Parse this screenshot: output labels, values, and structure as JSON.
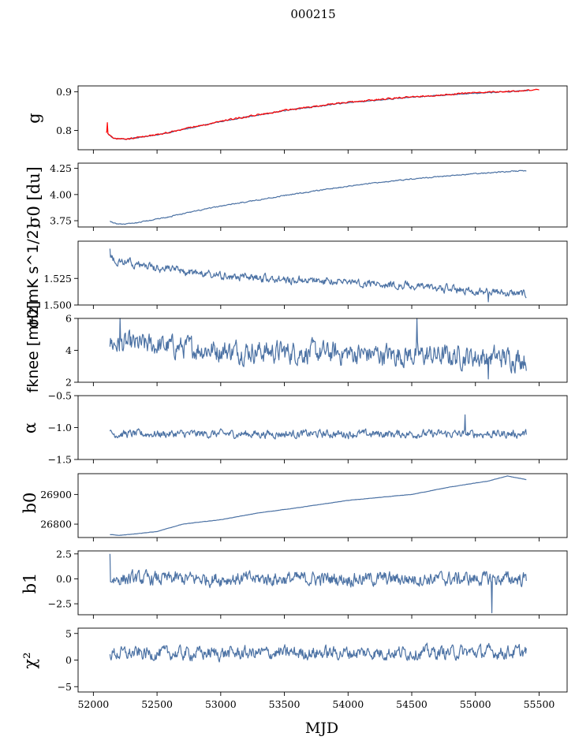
{
  "figure_title": "000215",
  "xlabel": "MJD",
  "chart_data": [
    {
      "type": "line",
      "ylabel": "g",
      "xlim": [
        51880,
        55720
      ],
      "ylim": [
        0.75,
        0.915
      ],
      "yticks": [
        0.8,
        0.9
      ],
      "ytick_labels": [
        "0.8",
        "0.9"
      ],
      "series": [
        {
          "color": "#4c72a4",
          "trend": [
            [
              52110,
              0.793
            ],
            [
              52150,
              0.78
            ],
            [
              52250,
              0.777
            ],
            [
              52500,
              0.788
            ],
            [
              53000,
              0.823
            ],
            [
              53500,
              0.851
            ],
            [
              54000,
              0.872
            ],
            [
              54500,
              0.886
            ],
            [
              55000,
              0.896
            ],
            [
              55420,
              0.903
            ]
          ],
          "noise": 0.001
        },
        {
          "color": "#ff0000",
          "trend": [
            [
              52100,
              0.796
            ],
            [
              52160,
              0.78
            ],
            [
              52250,
              0.777
            ],
            [
              52500,
              0.789
            ],
            [
              53000,
              0.824
            ],
            [
              53500,
              0.852
            ],
            [
              54000,
              0.873
            ],
            [
              54500,
              0.887
            ],
            [
              55000,
              0.897
            ],
            [
              55500,
              0.905
            ]
          ],
          "noise": 0.0015,
          "spikes": [
            [
              52110,
              0.82
            ]
          ]
        }
      ]
    },
    {
      "type": "line",
      "ylabel": "σ0 [du]",
      "xlim": [
        51880,
        55720
      ],
      "ylim": [
        3.69,
        4.3
      ],
      "yticks": [
        3.75,
        4.0,
        4.25
      ],
      "ytick_labels": [
        "3.75",
        "4.00",
        "4.25"
      ],
      "series": [
        {
          "color": "#4c72a4",
          "trend": [
            [
              52130,
              3.745
            ],
            [
              52180,
              3.72
            ],
            [
              52300,
              3.72
            ],
            [
              52600,
              3.79
            ],
            [
              53000,
              3.89
            ],
            [
              53500,
              3.99
            ],
            [
              54000,
              4.08
            ],
            [
              54500,
              4.15
            ],
            [
              55000,
              4.2
            ],
            [
              55400,
              4.23
            ]
          ],
          "noise": 0.004
        }
      ]
    },
    {
      "type": "line",
      "ylabel": "σ0[mK s^1/2]",
      "xlim": [
        51880,
        55720
      ],
      "ylim": [
        1.5,
        1.56
      ],
      "yticks": [
        1.5,
        1.525
      ],
      "ytick_labels": [
        "1.500",
        "1.525"
      ],
      "series": [
        {
          "color": "#4c72a4",
          "trend": [
            [
              52130,
              1.543
            ],
            [
              52500,
              1.535
            ],
            [
              53000,
              1.527
            ],
            [
              53500,
              1.524
            ],
            [
              54000,
              1.522
            ],
            [
              54500,
              1.518
            ],
            [
              55000,
              1.513
            ],
            [
              55400,
              1.51
            ]
          ],
          "noise": 0.003,
          "spikes": [
            [
              52130,
              1.553
            ],
            [
              55100,
              1.503
            ]
          ]
        }
      ]
    },
    {
      "type": "line",
      "ylabel": "fknee [mHz]",
      "xlim": [
        51880,
        55720
      ],
      "ylim": [
        2,
        6
      ],
      "yticks": [
        2,
        4,
        6
      ],
      "ytick_labels": [
        "2",
        "4",
        "6"
      ],
      "series": [
        {
          "color": "#4c72a4",
          "trend": [
            [
              52130,
              4.4
            ],
            [
              52500,
              4.3
            ],
            [
              53000,
              4.0
            ],
            [
              53500,
              3.9
            ],
            [
              54000,
              3.8
            ],
            [
              54500,
              3.7
            ],
            [
              55000,
              3.6
            ],
            [
              55400,
              3.5
            ]
          ],
          "noise": 0.55,
          "spikes": [
            [
              52210,
              6.0
            ],
            [
              54540,
              6.0
            ],
            [
              55100,
              2.2
            ]
          ]
        }
      ]
    },
    {
      "type": "line",
      "ylabel": "α",
      "xlim": [
        51880,
        55720
      ],
      "ylim": [
        -1.5,
        -0.5
      ],
      "yticks": [
        -1.5,
        -1.0,
        -0.5
      ],
      "ytick_labels": [
        "−1.5",
        "−1.0",
        "−0.5"
      ],
      "series": [
        {
          "color": "#4c72a4",
          "trend": [
            [
              52130,
              -1.1
            ],
            [
              55400,
              -1.1
            ]
          ],
          "noise": 0.05,
          "spikes": [
            [
              54920,
              -0.8
            ]
          ]
        }
      ]
    },
    {
      "type": "line",
      "ylabel": "b0",
      "xlim": [
        51880,
        55720
      ],
      "ylim": [
        26755,
        26970
      ],
      "yticks": [
        26800,
        26900
      ],
      "ytick_labels": [
        "26800",
        "26900"
      ],
      "series": [
        {
          "color": "#4c72a4",
          "trend": [
            [
              52130,
              26765
            ],
            [
              52200,
              26762
            ],
            [
              52500,
              26775
            ],
            [
              52700,
              26800
            ],
            [
              53000,
              26815
            ],
            [
              53300,
              26838
            ],
            [
              53600,
              26855
            ],
            [
              54000,
              26880
            ],
            [
              54500,
              26900
            ],
            [
              54800,
              26925
            ],
            [
              55100,
              26945
            ],
            [
              55250,
              26962
            ],
            [
              55400,
              26950
            ]
          ],
          "noise": 0.4
        }
      ]
    },
    {
      "type": "line",
      "ylabel": "b1",
      "xlim": [
        51880,
        55720
      ],
      "ylim": [
        -3.6,
        2.8
      ],
      "yticks": [
        -2.5,
        0.0,
        2.5
      ],
      "ytick_labels": [
        "−2.5",
        "0.0",
        "2.5"
      ],
      "series": [
        {
          "color": "#4c72a4",
          "trend": [
            [
              52130,
              0.0
            ],
            [
              55400,
              0.0
            ]
          ],
          "noise": 0.55,
          "spikes": [
            [
              52130,
              2.5
            ],
            [
              55130,
              -3.4
            ]
          ]
        }
      ]
    },
    {
      "type": "line",
      "ylabel": "χ²",
      "xlim": [
        51880,
        55720
      ],
      "ylim": [
        -6,
        6
      ],
      "yticks": [
        -5,
        0,
        5
      ],
      "ytick_labels": [
        "−5",
        "0",
        "5"
      ],
      "series": [
        {
          "color": "#4c72a4",
          "trend": [
            [
              52130,
              1.2
            ],
            [
              55400,
              1.5
            ]
          ],
          "noise": 1.0
        }
      ]
    }
  ],
  "xticks": [
    52000,
    52500,
    53000,
    53500,
    54000,
    54500,
    55000,
    55500
  ],
  "xtick_labels": [
    "52000",
    "52500",
    "53000",
    "53500",
    "54000",
    "54500",
    "55000",
    "55500"
  ]
}
